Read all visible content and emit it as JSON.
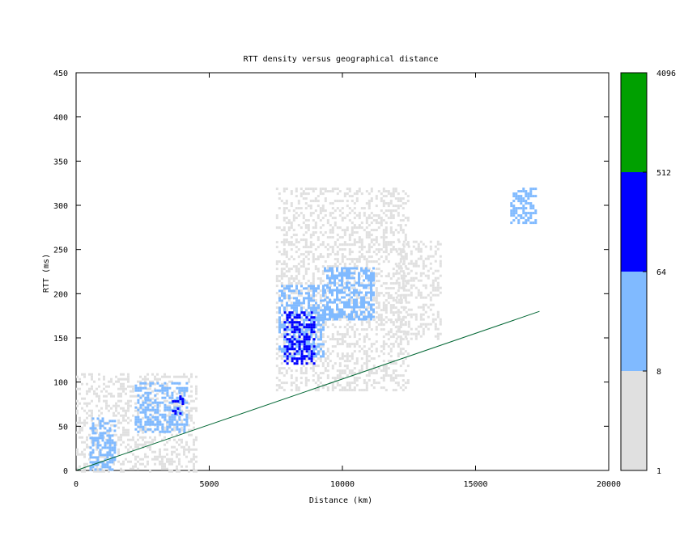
{
  "chart_data": {
    "type": "heatmap",
    "title": "RTT density versus geographical distance",
    "xlabel": "Distance (km)",
    "ylabel": "RTT (ms)",
    "xlim": [
      0,
      20000
    ],
    "ylim": [
      0,
      450
    ],
    "xticks": [
      0,
      5000,
      10000,
      15000,
      20000
    ],
    "yticks": [
      0,
      50,
      100,
      150,
      200,
      250,
      300,
      350,
      400,
      450
    ],
    "grid": false,
    "colorbar": {
      "scale": "log2",
      "ticks": [
        1,
        8,
        64,
        512,
        4096
      ],
      "bands": [
        {
          "min": 1,
          "max": 8,
          "color": "#e0e0e0"
        },
        {
          "min": 8,
          "max": 64,
          "color": "#80baff"
        },
        {
          "min": 64,
          "max": 512,
          "color": "#0000ff"
        },
        {
          "min": 512,
          "max": 4096,
          "color": "#00a000"
        }
      ]
    },
    "reference_line": {
      "color": "#006633",
      "points": [
        [
          0,
          0
        ],
        [
          17400,
          180
        ]
      ]
    },
    "density_regions": [
      {
        "x": [
          0,
          4500
        ],
        "y": [
          0,
          110
        ],
        "level": 1
      },
      {
        "x": [
          500,
          1500
        ],
        "y": [
          0,
          60
        ],
        "level": 2
      },
      {
        "x": [
          2200,
          4200
        ],
        "y": [
          45,
          100
        ],
        "level": 2
      },
      {
        "x": [
          3600,
          4000
        ],
        "y": [
          65,
          85
        ],
        "level": 3
      },
      {
        "x": [
          7500,
          12500
        ],
        "y": [
          90,
          320
        ],
        "level": 1
      },
      {
        "x": [
          7600,
          9300
        ],
        "y": [
          130,
          210
        ],
        "level": 2
      },
      {
        "x": [
          7800,
          8900
        ],
        "y": [
          120,
          180
        ],
        "level": 3
      },
      {
        "x": [
          9300,
          11200
        ],
        "y": [
          170,
          230
        ],
        "level": 2
      },
      {
        "x": [
          12000,
          13700
        ],
        "y": [
          150,
          260
        ],
        "level": 1
      },
      {
        "x": [
          16300,
          17300
        ],
        "y": [
          280,
          320
        ],
        "level": 2
      }
    ]
  }
}
